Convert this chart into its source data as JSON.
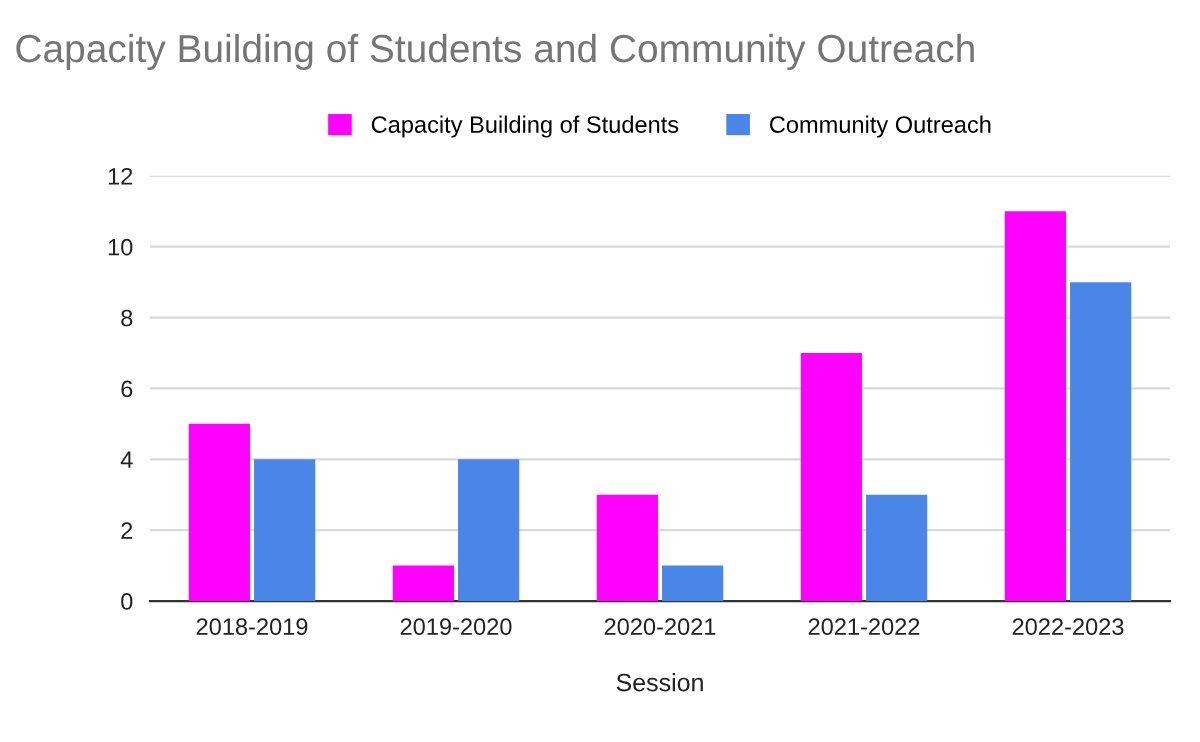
{
  "chart_data": {
    "type": "bar",
    "title": "Capacity Building of Students and Community Outreach",
    "xlabel": "Session",
    "categories": [
      "2018-2019",
      "2019-2020",
      "2020-2021",
      "2021-2022",
      "2022-2023"
    ],
    "series": [
      {
        "name": "Capacity Building of Students",
        "color": "#ff00ff",
        "values": [
          5,
          1,
          3,
          7,
          11
        ]
      },
      {
        "name": "Community Outreach",
        "color": "#4a86e8",
        "values": [
          4,
          4,
          1,
          3,
          9
        ]
      }
    ],
    "ylim": [
      0,
      12
    ],
    "yticks": [
      0,
      2,
      4,
      6,
      8,
      10,
      12
    ],
    "grid": "y",
    "legend": "top"
  }
}
